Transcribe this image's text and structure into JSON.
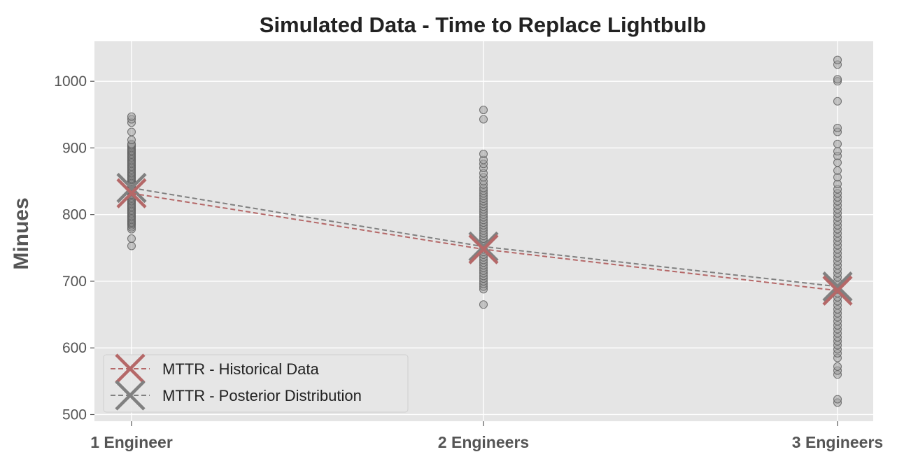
{
  "chart_data": {
    "type": "scatter",
    "title": "Simulated Data - Time to Replace Lightbulb",
    "xlabel": "",
    "ylabel": "Minues",
    "categories": [
      "1 Engineer",
      "2 Engineers",
      "3 Engineers"
    ],
    "ylim": [
      490,
      1060
    ],
    "yticks": [
      500,
      600,
      700,
      800,
      900,
      1000
    ],
    "grid": true,
    "legend_position": "lower-left",
    "colors": {
      "background": "#e5e5e5",
      "grid": "#ffffff",
      "points_fill": "#a0a0a0",
      "points_edge": "#555555",
      "historical": "#b56868",
      "posterior": "#808080"
    },
    "scatter_points": [
      [
        753,
        764,
        778,
        781,
        784,
        786,
        788,
        790,
        792,
        794,
        796,
        798,
        800,
        802,
        804,
        806,
        808,
        810,
        812,
        814,
        816,
        818,
        820,
        822,
        824,
        826,
        828,
        830,
        832,
        834,
        836,
        838,
        840,
        842,
        844,
        846,
        848,
        850,
        852,
        854,
        856,
        858,
        860,
        862,
        864,
        866,
        868,
        870,
        872,
        874,
        876,
        878,
        880,
        882,
        884,
        886,
        888,
        890,
        892,
        894,
        896,
        898,
        900,
        902,
        904,
        906,
        912,
        924,
        938,
        943,
        947
      ],
      [
        665,
        688,
        692,
        696,
        700,
        704,
        708,
        712,
        716,
        720,
        724,
        728,
        732,
        736,
        740,
        744,
        748,
        752,
        756,
        760,
        764,
        768,
        772,
        776,
        780,
        784,
        788,
        792,
        796,
        800,
        804,
        808,
        812,
        816,
        820,
        824,
        828,
        832,
        836,
        840,
        845,
        850,
        856,
        862,
        870,
        876,
        882,
        891,
        943,
        957
      ],
      [
        518,
        523,
        560,
        566,
        572,
        585,
        592,
        598,
        604,
        610,
        616,
        622,
        628,
        634,
        640,
        646,
        652,
        658,
        664,
        670,
        676,
        682,
        688,
        694,
        700,
        706,
        712,
        718,
        724,
        730,
        736,
        742,
        748,
        754,
        760,
        766,
        772,
        778,
        784,
        790,
        796,
        802,
        808,
        814,
        820,
        826,
        832,
        838,
        846,
        856,
        866,
        878,
        888,
        895,
        906,
        924,
        930,
        970,
        1000,
        1003,
        1025,
        1032
      ]
    ],
    "series": [
      {
        "name": "MTTR - Historical Data",
        "values": [
          832,
          748,
          686
        ]
      },
      {
        "name": "MTTR - Posterior Distribution",
        "values": [
          840,
          752,
          692
        ]
      }
    ]
  }
}
